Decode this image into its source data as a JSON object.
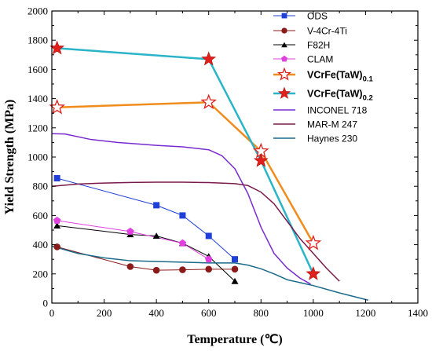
{
  "chart_data": {
    "type": "line",
    "xlabel": "Temperature (℃)",
    "ylabel": "Yield Strength (MPa)",
    "xlim": [
      0,
      1400
    ],
    "ylim": [
      0,
      2000
    ],
    "xticks": [
      0,
      200,
      400,
      600,
      800,
      1000,
      1200,
      1400
    ],
    "yticks": [
      0,
      200,
      400,
      600,
      800,
      1000,
      1200,
      1400,
      1600,
      1800,
      2000
    ],
    "grid": false,
    "legend_position": "top-right",
    "series": [
      {
        "name": "ODS",
        "color": "#1f3fd8",
        "marker": "square",
        "line_width": 1,
        "points": [
          [
            20,
            855
          ],
          [
            400,
            670
          ],
          [
            500,
            600
          ],
          [
            600,
            460
          ],
          [
            700,
            300
          ]
        ]
      },
      {
        "name": "V-4Cr-4Ti",
        "color": "#8b1a1a",
        "marker": "circle",
        "line_width": 1,
        "points": [
          [
            20,
            385
          ],
          [
            300,
            250
          ],
          [
            400,
            225
          ],
          [
            500,
            228
          ],
          [
            600,
            232
          ],
          [
            700,
            232
          ]
        ]
      },
      {
        "name": "F82H",
        "color": "#000000",
        "marker": "triangle",
        "line_width": 1,
        "points": [
          [
            20,
            530
          ],
          [
            300,
            470
          ],
          [
            400,
            460
          ],
          [
            500,
            410
          ],
          [
            600,
            320
          ],
          [
            700,
            150
          ]
        ]
      },
      {
        "name": "CLAM",
        "color": "#e040e0",
        "marker": "pentagon",
        "line_width": 1,
        "points": [
          [
            20,
            565
          ],
          [
            300,
            490
          ],
          [
            500,
            410
          ],
          [
            600,
            300
          ]
        ]
      },
      {
        "name": "VCrFe(TaW)",
        "name_subscript": "0.1",
        "color": "#f08c1c",
        "marker": "star-open",
        "line_width": 2.5,
        "points": [
          [
            20,
            1340
          ],
          [
            600,
            1375
          ],
          [
            800,
            1040
          ],
          [
            1000,
            410
          ]
        ]
      },
      {
        "name": "VCrFe(TaW)",
        "name_subscript": "0.2",
        "color": "#2ab4c8",
        "marker": "star-filled",
        "line_width": 2.5,
        "points": [
          [
            20,
            1745
          ],
          [
            600,
            1670
          ],
          [
            800,
            975
          ],
          [
            1000,
            200
          ]
        ]
      },
      {
        "name": "INCONEL 718",
        "color": "#7a2ad0",
        "marker": "none",
        "line_width": 1.5,
        "points": [
          [
            0,
            1160
          ],
          [
            50,
            1158
          ],
          [
            150,
            1120
          ],
          [
            250,
            1100
          ],
          [
            400,
            1080
          ],
          [
            500,
            1070
          ],
          [
            600,
            1050
          ],
          [
            650,
            1010
          ],
          [
            700,
            920
          ],
          [
            750,
            750
          ],
          [
            800,
            520
          ],
          [
            850,
            340
          ],
          [
            900,
            240
          ],
          [
            950,
            170
          ],
          [
            990,
            130
          ]
        ]
      },
      {
        "name": "MAR-M 247",
        "color": "#7a1a4a",
        "marker": "none",
        "line_width": 1.5,
        "points": [
          [
            0,
            800
          ],
          [
            100,
            815
          ],
          [
            200,
            822
          ],
          [
            300,
            826
          ],
          [
            400,
            828
          ],
          [
            500,
            828
          ],
          [
            600,
            825
          ],
          [
            700,
            818
          ],
          [
            750,
            805
          ],
          [
            800,
            760
          ],
          [
            850,
            680
          ],
          [
            900,
            560
          ],
          [
            950,
            440
          ],
          [
            1000,
            340
          ],
          [
            1050,
            240
          ],
          [
            1100,
            150
          ]
        ]
      },
      {
        "name": "Haynes 230",
        "color": "#1a6a8a",
        "marker": "none",
        "line_width": 1.5,
        "points": [
          [
            0,
            390
          ],
          [
            100,
            340
          ],
          [
            200,
            310
          ],
          [
            300,
            290
          ],
          [
            400,
            285
          ],
          [
            500,
            280
          ],
          [
            600,
            275
          ],
          [
            700,
            275
          ],
          [
            750,
            260
          ],
          [
            800,
            235
          ],
          [
            850,
            200
          ],
          [
            900,
            160
          ],
          [
            1000,
            120
          ],
          [
            1100,
            70
          ],
          [
            1210,
            20
          ]
        ]
      }
    ]
  }
}
